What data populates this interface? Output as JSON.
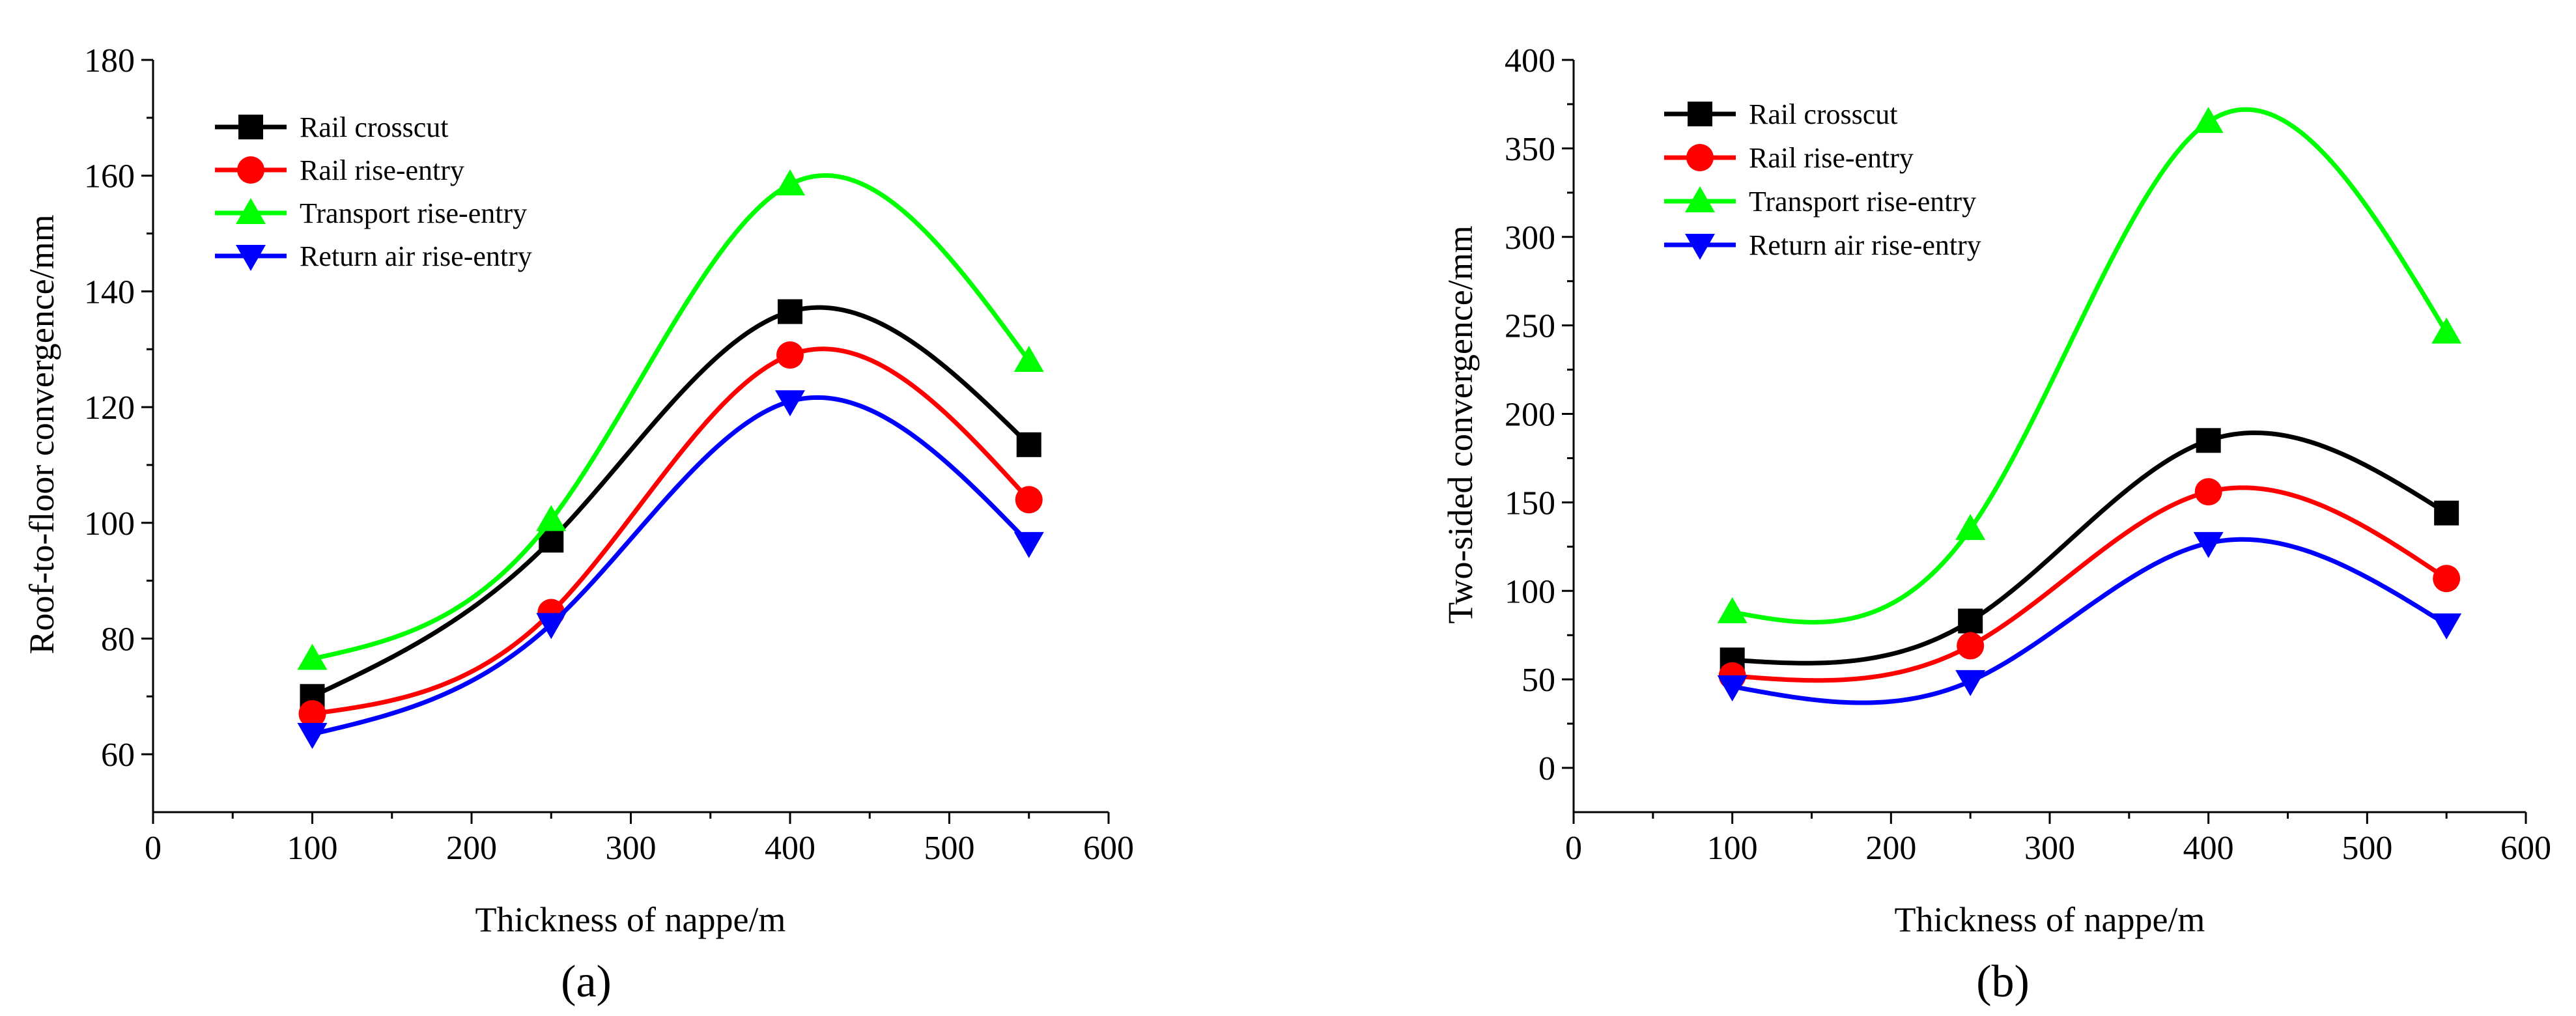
{
  "chart_data": [
    {
      "panel": "a",
      "panel_label": "(a)",
      "type": "line",
      "xlabel": "Thickness of nappe/m",
      "ylabel": "Roof-to-floor convergence/mm",
      "xlim": [
        0,
        600
      ],
      "ylim": [
        50,
        180
      ],
      "xticks": [
        0,
        100,
        200,
        300,
        400,
        500,
        600
      ],
      "yticks": [
        60,
        80,
        100,
        120,
        140,
        160,
        180
      ],
      "x": [
        100,
        250,
        400,
        550
      ],
      "series": [
        {
          "name": "Rail crosscut",
          "color": "#000000",
          "marker": "square",
          "values": [
            70,
            97,
            136.5,
            113.5
          ]
        },
        {
          "name": "Rail rise-entry",
          "color": "#ff0000",
          "marker": "circle",
          "values": [
            67,
            84.5,
            129,
            104
          ]
        },
        {
          "name": "Transport rise-entry",
          "color": "#00ff00",
          "marker": "triangle-up",
          "values": [
            76.5,
            100.5,
            158.5,
            128
          ]
        },
        {
          "name": "Return air rise-entry",
          "color": "#0000ff",
          "marker": "triangle-down",
          "values": [
            63.5,
            82.5,
            121,
            96.5
          ]
        }
      ],
      "legend": "top-left"
    },
    {
      "panel": "b",
      "panel_label": "(b)",
      "type": "line",
      "xlabel": "Thickness of nappe/m",
      "ylabel": "Two-sided convergence/mm",
      "xlim": [
        0,
        600
      ],
      "ylim": [
        -25,
        400
      ],
      "xticks": [
        0,
        100,
        200,
        300,
        400,
        500,
        600
      ],
      "yticks": [
        0,
        50,
        100,
        150,
        200,
        250,
        300,
        350,
        400
      ],
      "x": [
        100,
        250,
        400,
        550
      ],
      "series": [
        {
          "name": "Rail crosscut",
          "color": "#000000",
          "marker": "square",
          "values": [
            61,
            83,
            185,
            144
          ]
        },
        {
          "name": "Rail rise-entry",
          "color": "#ff0000",
          "marker": "circle",
          "values": [
            52,
            69,
            156,
            107
          ]
        },
        {
          "name": "Transport rise-entry",
          "color": "#00ff00",
          "marker": "triangle-up",
          "values": [
            88,
            135,
            365,
            246
          ]
        },
        {
          "name": "Return air rise-entry",
          "color": "#0000ff",
          "marker": "triangle-down",
          "values": [
            46,
            49,
            127,
            81
          ]
        }
      ],
      "legend": "top-left"
    }
  ]
}
